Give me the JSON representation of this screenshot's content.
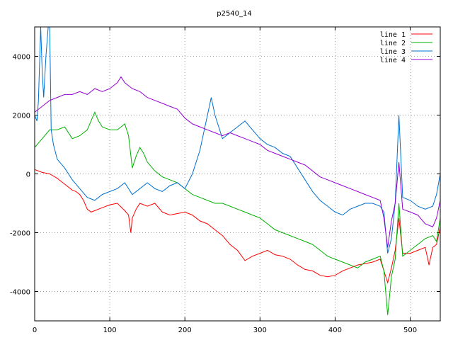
{
  "chart_data": {
    "type": "line",
    "title": "p2540_14",
    "xlabel": "",
    "ylabel": "",
    "xlim": [
      0,
      540
    ],
    "ylim": [
      -5000,
      5000
    ],
    "x_ticks": [
      0,
      100,
      200,
      300,
      400,
      500
    ],
    "y_ticks": [
      -4000,
      -2000,
      0,
      2000,
      4000
    ],
    "grid": true,
    "legend_position": "top-right",
    "series": [
      {
        "name": "line 1",
        "color": "#ff0000",
        "x": [
          0,
          10,
          20,
          30,
          40,
          50,
          55,
          60,
          65,
          70,
          75,
          80,
          90,
          100,
          110,
          120,
          125,
          128,
          130,
          135,
          140,
          150,
          160,
          170,
          180,
          190,
          200,
          210,
          220,
          230,
          240,
          250,
          260,
          270,
          280,
          290,
          300,
          310,
          320,
          330,
          340,
          350,
          360,
          370,
          380,
          390,
          400,
          410,
          420,
          430,
          440,
          450,
          460,
          465,
          470,
          475,
          480,
          485,
          490,
          500,
          510,
          520,
          525,
          530,
          535,
          540
        ],
        "y": [
          150,
          50,
          0,
          -150,
          -350,
          -550,
          -600,
          -700,
          -900,
          -1200,
          -1300,
          -1250,
          -1150,
          -1050,
          -1000,
          -1250,
          -1400,
          -2000,
          -1500,
          -1200,
          -1000,
          -1100,
          -1000,
          -1300,
          -1400,
          -1350,
          -1300,
          -1400,
          -1600,
          -1700,
          -1900,
          -2100,
          -2400,
          -2600,
          -2950,
          -2800,
          -2700,
          -2600,
          -2750,
          -2800,
          -2900,
          -3100,
          -3250,
          -3300,
          -3450,
          -3500,
          -3450,
          -3300,
          -3200,
          -3100,
          -3050,
          -3000,
          -2900,
          -3300,
          -3700,
          -3200,
          -2600,
          -1500,
          -2700,
          -2700,
          -2600,
          -2500,
          -3100,
          -2500,
          -2400,
          -1800
        ]
      },
      {
        "name": "line 2",
        "color": "#00b000",
        "x": [
          0,
          10,
          20,
          30,
          40,
          50,
          60,
          70,
          80,
          85,
          90,
          100,
          110,
          115,
          120,
          125,
          130,
          135,
          140,
          145,
          150,
          160,
          170,
          180,
          190,
          200,
          210,
          220,
          230,
          240,
          250,
          260,
          270,
          280,
          290,
          300,
          310,
          320,
          330,
          340,
          350,
          360,
          370,
          380,
          390,
          400,
          410,
          420,
          430,
          440,
          450,
          460,
          465,
          470,
          475,
          480,
          485,
          490,
          500,
          510,
          520,
          530,
          535,
          540
        ],
        "y": [
          900,
          1200,
          1500,
          1500,
          1600,
          1200,
          1300,
          1500,
          2100,
          1800,
          1600,
          1500,
          1500,
          1600,
          1700,
          1300,
          200,
          600,
          900,
          700,
          400,
          100,
          -100,
          -200,
          -300,
          -500,
          -700,
          -800,
          -900,
          -1000,
          -1000,
          -1100,
          -1200,
          -1300,
          -1400,
          -1500,
          -1700,
          -1900,
          -2000,
          -2100,
          -2200,
          -2300,
          -2400,
          -2600,
          -2800,
          -2900,
          -3000,
          -3100,
          -3200,
          -3000,
          -2900,
          -2800,
          -3300,
          -4800,
          -3500,
          -2900,
          -1000,
          -2800,
          -2600,
          -2400,
          -2200,
          -2100,
          -2300,
          -1500
        ]
      },
      {
        "name": "line 3",
        "color": "#0070d0",
        "x": [
          0,
          3,
          5,
          8,
          10,
          12,
          15,
          18,
          20,
          22,
          25,
          30,
          40,
          50,
          60,
          70,
          80,
          90,
          100,
          110,
          120,
          130,
          140,
          150,
          160,
          170,
          180,
          190,
          200,
          210,
          220,
          230,
          235,
          240,
          250,
          260,
          270,
          280,
          290,
          300,
          310,
          320,
          330,
          340,
          350,
          360,
          370,
          380,
          390,
          400,
          410,
          420,
          430,
          440,
          450,
          460,
          465,
          470,
          475,
          480,
          485,
          490,
          500,
          510,
          520,
          530,
          535,
          540
        ],
        "y": [
          2000,
          1800,
          2500,
          5000,
          3500,
          2600,
          4000,
          5000,
          5000,
          1500,
          1000,
          500,
          200,
          -200,
          -500,
          -800,
          -900,
          -700,
          -600,
          -500,
          -300,
          -700,
          -500,
          -300,
          -500,
          -600,
          -400,
          -300,
          -500,
          0,
          800,
          2000,
          2600,
          2000,
          1200,
          1400,
          1600,
          1800,
          1500,
          1200,
          1000,
          900,
          700,
          600,
          200,
          -200,
          -600,
          -900,
          -1100,
          -1300,
          -1400,
          -1200,
          -1100,
          -1000,
          -1000,
          -1100,
          -1300,
          -2700,
          -2200,
          -1000,
          2000,
          -800,
          -900,
          -1100,
          -1200,
          -1100,
          -700,
          0
        ]
      },
      {
        "name": "line 4",
        "color": "#9400d3",
        "x": [
          0,
          10,
          20,
          30,
          40,
          50,
          60,
          70,
          80,
          90,
          100,
          110,
          115,
          120,
          130,
          140,
          150,
          160,
          170,
          180,
          190,
          200,
          210,
          220,
          230,
          240,
          250,
          260,
          270,
          280,
          290,
          300,
          310,
          320,
          330,
          340,
          350,
          360,
          370,
          380,
          390,
          400,
          410,
          420,
          430,
          440,
          450,
          460,
          465,
          470,
          475,
          480,
          485,
          490,
          500,
          510,
          520,
          530,
          535,
          540
        ],
        "y": [
          2100,
          2300,
          2500,
          2600,
          2700,
          2700,
          2800,
          2700,
          2900,
          2800,
          2900,
          3100,
          3300,
          3100,
          2900,
          2800,
          2600,
          2500,
          2400,
          2300,
          2200,
          1900,
          1700,
          1600,
          1500,
          1400,
          1300,
          1400,
          1300,
          1200,
          1100,
          1000,
          800,
          700,
          600,
          500,
          400,
          300,
          100,
          -100,
          -200,
          -300,
          -400,
          -500,
          -600,
          -700,
          -800,
          -900,
          -1500,
          -2500,
          -1600,
          -1000,
          400,
          -1200,
          -1300,
          -1400,
          -1700,
          -1800,
          -1500,
          -900
        ]
      }
    ]
  }
}
